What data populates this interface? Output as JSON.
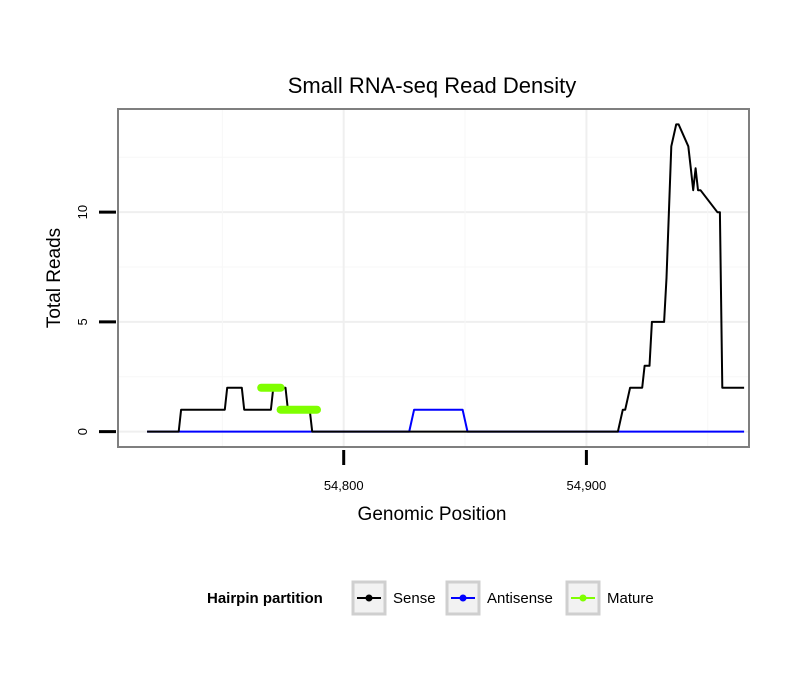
{
  "chart_data": {
    "type": "line",
    "title": "Small RNA-seq Read Density",
    "xlabel": "Genomic Position",
    "ylabel": "Total Reads",
    "xlim": [
      54707,
      54967
    ],
    "ylim": [
      -0.7,
      14.7
    ],
    "x_ticks": [
      {
        "value": 54800,
        "label": "54,800"
      },
      {
        "value": 54900,
        "label": "54,900"
      }
    ],
    "y_ticks": [
      {
        "value": 0,
        "label": "0"
      },
      {
        "value": 5,
        "label": "5"
      },
      {
        "value": 10,
        "label": "10"
      }
    ],
    "grid": true,
    "legend_position": "bottom",
    "legend": {
      "title": "Hairpin partition",
      "entries": [
        {
          "name": "Sense",
          "color": "#000000"
        },
        {
          "name": "Antisense",
          "color": "#0000ff"
        },
        {
          "name": "Mature",
          "color": "#7fff00"
        }
      ]
    },
    "series": [
      {
        "name": "Sense",
        "color": "#000000",
        "x": [
          54719,
          54732,
          54733,
          54751,
          54752,
          54758,
          54759,
          54770,
          54771,
          54776,
          54777,
          54786,
          54787,
          54913,
          54915,
          54916,
          54918,
          54923,
          54924,
          54926,
          54927,
          54932,
          54933,
          54935,
          54937,
          54938,
          54942,
          54943,
          54944,
          54945,
          54946,
          54947,
          54954,
          54955,
          54956,
          54965
        ],
        "y": [
          0,
          0,
          1,
          1,
          2,
          2,
          1,
          1,
          2,
          2,
          1,
          1,
          0,
          0,
          1,
          1,
          2,
          2,
          3,
          3,
          5,
          5,
          7,
          13,
          14,
          14,
          13,
          12,
          11,
          12,
          11,
          11,
          10,
          10,
          2,
          2
        ]
      },
      {
        "name": "Antisense",
        "color": "#0000ff",
        "x": [
          54719,
          54749,
          54751,
          54827,
          54829,
          54849,
          54851,
          54965
        ],
        "y": [
          0,
          0,
          0,
          0,
          1,
          1,
          0,
          0
        ]
      },
      {
        "name": "Mature",
        "color": "#7fff00",
        "segments": [
          {
            "x": [
              54766,
              54774
            ],
            "y": 2
          },
          {
            "x": [
              54774,
              54789
            ],
            "y": 1
          }
        ]
      }
    ]
  }
}
